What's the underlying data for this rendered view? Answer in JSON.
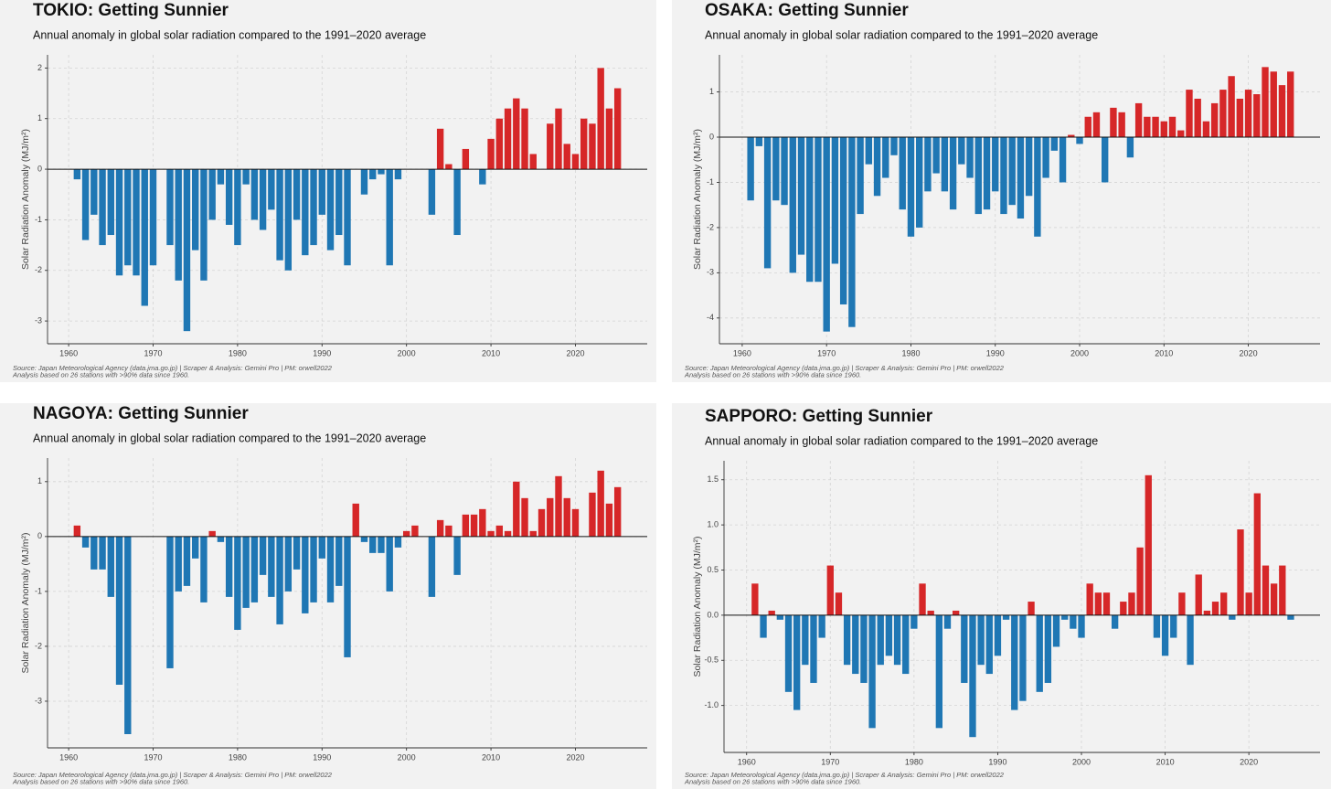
{
  "chart_data": [
    {
      "type": "bar",
      "title": "TOKIO: Getting Sunnier",
      "subtitle": "Annual anomaly in global solar radiation compared to the 1991–2020 average",
      "ylabel": "Solar Radiation Anomaly (MJ/m²)",
      "source": [
        "Source: Japan Meteorological Agency (data.jma.go.jp) | Scraper & Analysis: Gemini Pro | PM: orwell2022",
        "Analysis based on 26 stations with >90% data since 1960."
      ],
      "color_positive": "#d62728",
      "color_negative": "#1f77b4",
      "grid": true,
      "xlim": [
        1957.5,
        2028.5
      ],
      "xticks": [
        1960,
        1970,
        1980,
        1990,
        2000,
        2010,
        2020
      ],
      "ylim": [
        -3.45,
        2.26
      ],
      "yticks": [
        -3,
        -2,
        -1,
        0,
        1,
        2
      ],
      "x": [
        1961,
        1962,
        1963,
        1964,
        1965,
        1966,
        1967,
        1968,
        1969,
        1970,
        1971,
        1972,
        1973,
        1974,
        1975,
        1976,
        1977,
        1978,
        1979,
        1980,
        1981,
        1982,
        1983,
        1984,
        1985,
        1986,
        1987,
        1988,
        1989,
        1990,
        1991,
        1992,
        1993,
        1994,
        1995,
        1996,
        1997,
        1998,
        1999,
        2000,
        2001,
        2002,
        2003,
        2004,
        2005,
        2006,
        2007,
        2008,
        2009,
        2010,
        2011,
        2012,
        2013,
        2014,
        2015,
        2016,
        2017,
        2018,
        2019,
        2020,
        2021,
        2022,
        2023,
        2024,
        2025
      ],
      "values": [
        -0.2,
        -1.4,
        -0.9,
        -1.5,
        -1.3,
        -2.1,
        -1.9,
        -2.1,
        -2.7,
        -1.9,
        0,
        -1.5,
        -2.2,
        -3.2,
        -1.6,
        -2.2,
        -1.0,
        -0.3,
        -1.1,
        -1.5,
        -0.3,
        -1.0,
        -1.2,
        -0.8,
        -1.8,
        -2.0,
        -1.0,
        -1.7,
        -1.5,
        -0.9,
        -1.6,
        -1.3,
        -1.9,
        0,
        -0.5,
        -0.2,
        -0.1,
        -1.9,
        -0.2,
        0,
        0,
        0,
        -0.9,
        0.8,
        0.1,
        -1.3,
        0.4,
        0,
        -0.3,
        0.6,
        1.0,
        1.2,
        1.4,
        1.2,
        0.3,
        0,
        0.9,
        1.2,
        0.5,
        0.3,
        1.0,
        0.9,
        2.0,
        1.2,
        1.6
      ]
    },
    {
      "type": "bar",
      "title": "OSAKA: Getting Sunnier",
      "subtitle": "Annual anomaly in global solar radiation compared to the 1991–2020 average",
      "ylabel": "Solar Radiation Anomaly (MJ/m²)",
      "source": [
        "Source: Japan Meteorological Agency (data.jma.go.jp) | Scraper & Analysis: Gemini Pro | PM: orwell2022",
        "Analysis based on 26 stations with >90% data since 1960."
      ],
      "color_positive": "#d62728",
      "color_negative": "#1f77b4",
      "grid": true,
      "xlim": [
        1957.3,
        2028.5
      ],
      "xticks": [
        1960,
        1970,
        1980,
        1990,
        2000,
        2010,
        2020
      ],
      "ylim": [
        -4.57,
        1.82
      ],
      "yticks": [
        -4,
        -3,
        -2,
        -1,
        0,
        1
      ],
      "x": [
        1961,
        1962,
        1963,
        1964,
        1965,
        1966,
        1967,
        1968,
        1969,
        1970,
        1971,
        1972,
        1973,
        1974,
        1975,
        1976,
        1977,
        1978,
        1979,
        1980,
        1981,
        1982,
        1983,
        1984,
        1985,
        1986,
        1987,
        1988,
        1989,
        1990,
        1991,
        1992,
        1993,
        1994,
        1995,
        1996,
        1997,
        1998,
        1999,
        2000,
        2001,
        2002,
        2003,
        2004,
        2005,
        2006,
        2007,
        2008,
        2009,
        2010,
        2011,
        2012,
        2013,
        2014,
        2015,
        2016,
        2017,
        2018,
        2019,
        2020,
        2021,
        2022,
        2023,
        2024,
        2025
      ],
      "values": [
        -1.4,
        -0.2,
        -2.9,
        -1.4,
        -1.5,
        -3.0,
        -2.6,
        -3.2,
        -3.2,
        -4.3,
        -2.8,
        -3.7,
        -4.2,
        -1.7,
        -0.6,
        -1.3,
        -0.9,
        -0.4,
        -1.6,
        -2.2,
        -2.0,
        -1.2,
        -0.8,
        -1.2,
        -1.6,
        -0.6,
        -0.9,
        -1.7,
        -1.6,
        -1.2,
        -1.7,
        -1.5,
        -1.8,
        -1.3,
        -2.2,
        -0.9,
        -0.3,
        -1.0,
        0.05,
        -0.15,
        0.45,
        0.55,
        -1.0,
        0.65,
        0.55,
        -0.45,
        0.75,
        0.45,
        0.45,
        0.35,
        0.45,
        0.15,
        1.05,
        0.85,
        0.35,
        0.75,
        1.05,
        1.35,
        0.85,
        1.05,
        0.95,
        1.55,
        1.45,
        1.15,
        1.45
      ]
    },
    {
      "type": "bar",
      "title": "NAGOYA: Getting Sunnier",
      "subtitle": "Annual anomaly in global solar radiation compared to the 1991–2020 average",
      "ylabel": "Solar Radiation Anomaly (MJ/m²)",
      "source": [
        "Source: Japan Meteorological Agency (data.jma.go.jp) | Scraper & Analysis: Gemini Pro | PM: orwell2022",
        "Analysis based on 26 stations with >90% data since 1960."
      ],
      "color_positive": "#d62728",
      "color_negative": "#1f77b4",
      "grid": true,
      "xlim": [
        1957.5,
        2028.5
      ],
      "xticks": [
        1960,
        1970,
        1980,
        1990,
        2000,
        2010,
        2020
      ],
      "ylim": [
        -3.85,
        1.43
      ],
      "yticks": [
        -3,
        -2,
        -1,
        0,
        1
      ],
      "x": [
        1961,
        1962,
        1963,
        1964,
        1965,
        1966,
        1967,
        1968,
        1969,
        1970,
        1971,
        1972,
        1973,
        1974,
        1975,
        1976,
        1977,
        1978,
        1979,
        1980,
        1981,
        1982,
        1983,
        1984,
        1985,
        1986,
        1987,
        1988,
        1989,
        1990,
        1991,
        1992,
        1993,
        1994,
        1995,
        1996,
        1997,
        1998,
        1999,
        2000,
        2001,
        2002,
        2003,
        2004,
        2005,
        2006,
        2007,
        2008,
        2009,
        2010,
        2011,
        2012,
        2013,
        2014,
        2015,
        2016,
        2017,
        2018,
        2019,
        2020,
        2021,
        2022,
        2023,
        2024,
        2025
      ],
      "values": [
        0.2,
        -0.2,
        -0.6,
        -0.6,
        -1.1,
        -2.7,
        -3.6,
        0,
        0,
        0,
        0,
        -2.4,
        -1.0,
        -0.9,
        -0.4,
        -1.2,
        0.1,
        -0.1,
        -1.1,
        -1.7,
        -1.3,
        -1.2,
        -0.7,
        -1.1,
        -1.6,
        -1.0,
        -0.6,
        -1.4,
        -1.2,
        -0.4,
        -1.2,
        -0.9,
        -2.2,
        0.6,
        -0.1,
        -0.3,
        -0.3,
        -1.0,
        -0.2,
        0.1,
        0.2,
        0,
        -1.1,
        0.3,
        0.2,
        -0.7,
        0.4,
        0.4,
        0.5,
        0.1,
        0.2,
        0.1,
        1.0,
        0.7,
        0.1,
        0.5,
        0.7,
        1.1,
        0.7,
        0.5,
        0,
        0.8,
        1.2,
        0.6,
        0.9
      ]
    },
    {
      "type": "bar",
      "title": "SAPPORO: Getting Sunnier",
      "subtitle": "Annual anomaly in global solar radiation compared to the 1991–2020 average",
      "ylabel": "Solar Radiation Anomaly (MJ/m²)",
      "source": [
        "Source: Japan Meteorological Agency (data.jma.go.jp) | Scraper & Analysis: Gemini Pro | PM: orwell2022",
        "Analysis based on 26 stations with >90% data since 1960."
      ],
      "color_positive": "#d62728",
      "color_negative": "#1f77b4",
      "grid": true,
      "xlim": [
        1957.3,
        2028.5
      ],
      "xticks": [
        1960,
        1970,
        1980,
        1990,
        2000,
        2010,
        2020
      ],
      "ylim": [
        -1.52,
        1.71
      ],
      "yticks": [
        {
          "value": -1,
          "label": "-1.0"
        },
        {
          "value": -0.5,
          "label": "-0.5"
        },
        {
          "value": 0,
          "label": "0.0"
        },
        0.5,
        {
          "value": 1,
          "label": "1.0"
        },
        1.5
      ],
      "x": [
        1961,
        1962,
        1963,
        1964,
        1965,
        1966,
        1967,
        1968,
        1969,
        1970,
        1971,
        1972,
        1973,
        1974,
        1975,
        1976,
        1977,
        1978,
        1979,
        1980,
        1981,
        1982,
        1983,
        1984,
        1985,
        1986,
        1987,
        1988,
        1989,
        1990,
        1991,
        1992,
        1993,
        1994,
        1995,
        1996,
        1997,
        1998,
        1999,
        2000,
        2001,
        2002,
        2003,
        2004,
        2005,
        2006,
        2007,
        2008,
        2009,
        2010,
        2011,
        2012,
        2013,
        2014,
        2015,
        2016,
        2017,
        2018,
        2019,
        2020,
        2021,
        2022,
        2023,
        2024,
        2025
      ],
      "values": [
        0.35,
        -0.25,
        0.05,
        -0.05,
        -0.85,
        -1.05,
        -0.55,
        -0.75,
        -0.25,
        0.55,
        0.25,
        -0.55,
        -0.65,
        -0.75,
        -1.25,
        -0.55,
        -0.45,
        -0.55,
        -0.65,
        -0.15,
        0.35,
        0.05,
        -1.25,
        -0.15,
        0.05,
        -0.75,
        -1.35,
        -0.55,
        -0.65,
        -0.45,
        -0.05,
        -1.05,
        -0.95,
        0.15,
        -0.85,
        -0.75,
        -0.35,
        -0.05,
        -0.15,
        -0.25,
        0.35,
        0.25,
        0.25,
        -0.15,
        0.15,
        0.25,
        0.75,
        1.55,
        -0.25,
        -0.45,
        -0.25,
        0.25,
        -0.55,
        0.45,
        0.05,
        0.15,
        0.25,
        -0.05,
        0.95,
        0.25,
        1.35,
        0.55,
        0.35,
        0.55,
        -0.05
      ]
    }
  ]
}
